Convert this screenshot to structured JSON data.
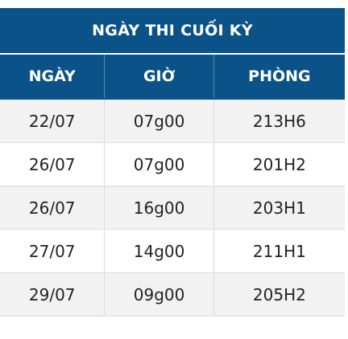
{
  "table": {
    "title": "NGÀY THI CUỐI KỲ",
    "columns": [
      "NGÀY",
      "GIỜ",
      "PHÒNG"
    ],
    "rows": [
      [
        "22/07",
        "07g00",
        "213H6"
      ],
      [
        "26/07",
        "07g00",
        "201H2"
      ],
      [
        "26/07",
        "16g00",
        "203H1"
      ],
      [
        "27/07",
        "14g00",
        "211H1"
      ],
      [
        "29/07",
        "09g00",
        "205H2"
      ]
    ]
  },
  "colors": {
    "header_bg": "#0b5288",
    "header_text": "#ffffff",
    "row_alt_bg": "#f2f2f2",
    "row_bg": "#ffffff"
  }
}
